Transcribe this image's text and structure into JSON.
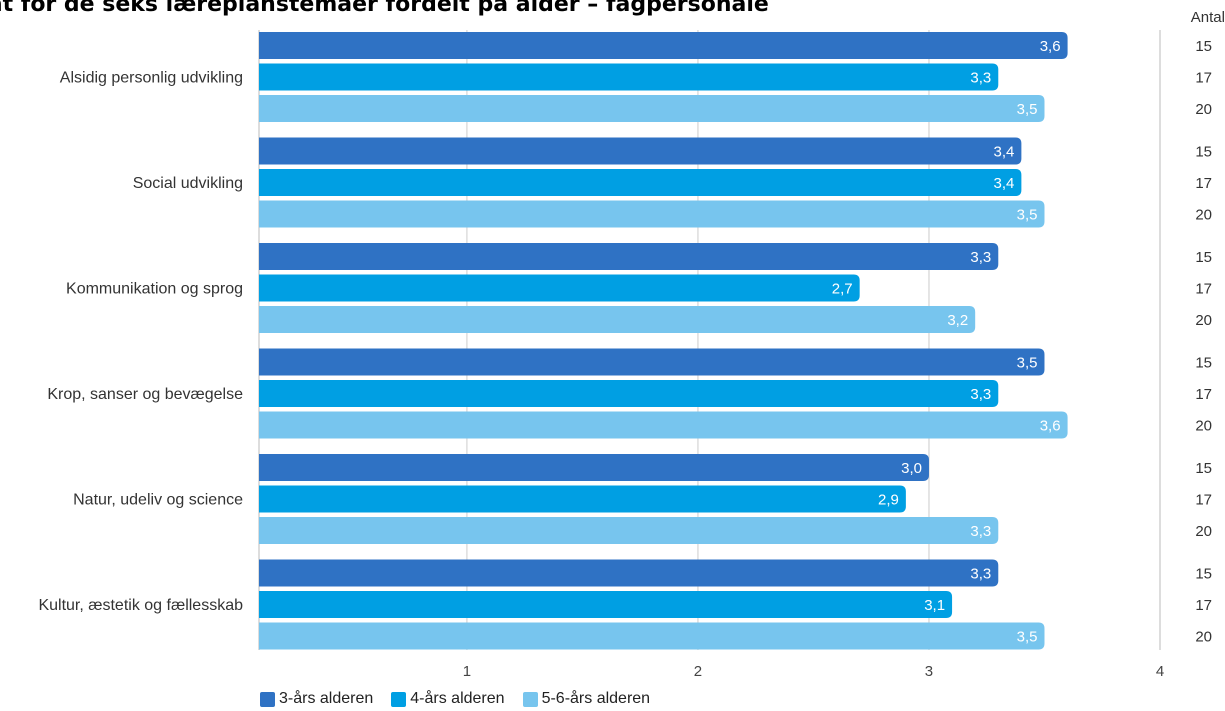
{
  "chart_data": {
    "type": "bar",
    "orientation": "horizontal",
    "title": "ultat for de seks læreplanstemaer fordelt på alder – fagpersonale",
    "count_header": "Antal",
    "categories": [
      "Alsidig personlig udvikling",
      "Social udvikling",
      "Kommunikation og sprog",
      "Krop, sanser og bevægelse",
      "Natur, udeliv og science",
      "Kultur, æstetik og fællesskab"
    ],
    "series": [
      {
        "name": "3-års alderen",
        "color": "#2F72C4",
        "values": [
          3.6,
          3.4,
          3.3,
          3.5,
          3.0,
          3.3
        ],
        "labels": [
          "3,6",
          "3,4",
          "3,3",
          "3,5",
          "3,0",
          "3,3"
        ],
        "counts": [
          "15",
          "15",
          "15",
          "15",
          "15",
          "15"
        ]
      },
      {
        "name": "4-års alderen",
        "color": "#009FE3",
        "values": [
          3.3,
          3.4,
          2.7,
          3.3,
          2.9,
          3.1
        ],
        "labels": [
          "3,3",
          "3,4",
          "2,7",
          "3,3",
          "2,9",
          "3,1"
        ],
        "counts": [
          "17",
          "17",
          "17",
          "17",
          "17",
          "17"
        ]
      },
      {
        "name": "5-6-års alderen",
        "color": "#77C5EE",
        "values": [
          3.5,
          3.5,
          3.2,
          3.6,
          3.3,
          3.5
        ],
        "labels": [
          "3,5",
          "3,5",
          "3,2",
          "3,6",
          "3,3",
          "3,5"
        ],
        "counts": [
          "20",
          "20",
          "20",
          "20",
          "20",
          "20"
        ]
      }
    ],
    "xlim": [
      0.1,
      4
    ],
    "xticks": [
      1,
      2,
      3,
      4
    ],
    "grid": true,
    "legend_position": "bottom"
  }
}
